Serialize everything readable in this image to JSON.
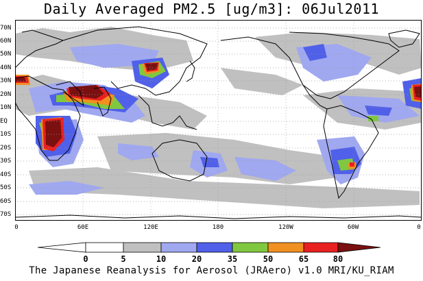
{
  "title": "Daily Averaged PM2.5 [ug/m3]: 06Jul2011",
  "footer": "The Japanese Reanalysis for Aerosol (JRAero) v1.0 MRI/KU_RIAM",
  "lat_labels": [
    "70N",
    "60N",
    "50N",
    "40N",
    "30N",
    "20N",
    "10N",
    "EQ",
    "10S",
    "20S",
    "30S",
    "40S",
    "50S",
    "60S",
    "70S"
  ],
  "lon_labels": [
    "0",
    "60E",
    "120E",
    "180",
    "120W",
    "60W",
    "0"
  ],
  "colorbar": {
    "labels": [
      "0",
      "5",
      "10",
      "20",
      "35",
      "50",
      "65",
      "80"
    ],
    "colors": [
      "#ffffff",
      "#c0c0c0",
      "#a0a8f0",
      "#5060e8",
      "#80c840",
      "#f09020",
      "#e82020",
      "#7a1010"
    ]
  },
  "map_colors": {
    "background": "#ffffff",
    "level1": "#c0c0c0",
    "level2": "#a0a8f0",
    "level3": "#5060e8",
    "level4": "#80c840",
    "level5": "#f09020",
    "level6": "#e82020",
    "level7": "#7a1010",
    "coast": "#000000",
    "grid": "#9a9a9a"
  }
}
